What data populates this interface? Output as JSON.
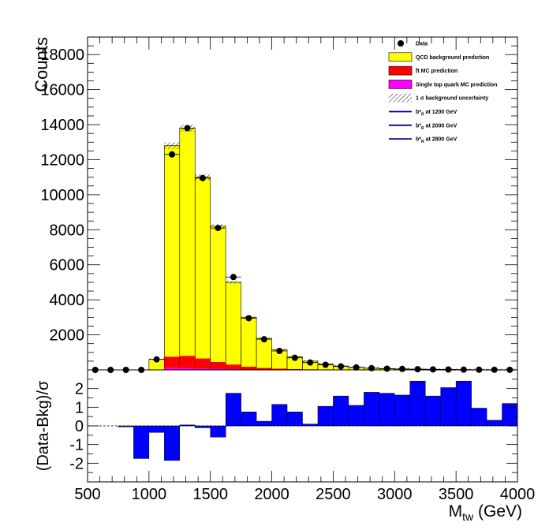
{
  "chart_data": [
    {
      "type": "bar",
      "panel": "main",
      "ylabel": "Counts",
      "xlim": [
        500,
        4000
      ],
      "ylim": [
        0,
        19000
      ],
      "y_ticks": [
        2000,
        4000,
        6000,
        8000,
        10000,
        12000,
        14000,
        16000,
        18000
      ],
      "bin_width": 125,
      "bin_low_edges": [
        500,
        625,
        750,
        875,
        1000,
        1125,
        1250,
        1375,
        1500,
        1625,
        1750,
        1875,
        2000,
        2125,
        2250,
        2375,
        2500,
        2625,
        2750,
        2875,
        3000,
        3125,
        3250,
        3375,
        3500,
        3625,
        3750,
        3875
      ],
      "series": [
        {
          "name": "QCD background prediction",
          "stack": "total",
          "color": "#ffff00",
          "values": [
            0,
            0,
            0,
            0,
            600,
            12800,
            13800,
            11000,
            8200,
            5000,
            3000,
            1800,
            1150,
            750,
            500,
            330,
            220,
            150,
            100,
            70,
            50,
            35,
            25,
            18,
            12,
            8,
            6,
            4
          ]
        },
        {
          "name": "t̄t MC prediction",
          "stack": "component",
          "color": "#ff0000",
          "values": [
            0,
            0,
            0,
            0,
            0,
            750,
            800,
            650,
            450,
            300,
            180,
            110,
            70,
            45,
            30,
            20,
            15,
            10,
            7,
            5,
            4,
            3,
            2,
            2,
            1,
            1,
            1,
            0
          ]
        },
        {
          "name": "Single top quark MC prediction",
          "stack": "component",
          "color": "#ff00ff",
          "values": [
            0,
            0,
            0,
            0,
            0,
            120,
            110,
            80,
            60,
            40,
            25,
            15,
            10,
            6,
            4,
            3,
            2,
            1,
            1,
            1,
            0,
            0,
            0,
            0,
            0,
            0,
            0,
            0
          ]
        },
        {
          "name": "Data",
          "marker": "circle",
          "color": "#000000",
          "values": [
            0,
            0,
            0,
            0,
            600,
            12300,
            13800,
            10950,
            8100,
            5300,
            2950,
            1750,
            1080,
            690,
            420,
            290,
            200,
            140,
            100,
            70,
            55,
            40,
            30,
            22,
            15,
            10,
            8,
            5
          ]
        }
      ],
      "legend": [
        {
          "label": "Data",
          "symbol": "marker"
        },
        {
          "label": "QCD background prediction",
          "symbol": "box",
          "color": "#ffff00"
        },
        {
          "label": "t̄t MC prediction",
          "symbol": "box",
          "color": "#ff0000"
        },
        {
          "label": "Single top quark MC prediction",
          "symbol": "box",
          "color": "#ff00ff"
        },
        {
          "label": "1 σ background uncertainty",
          "symbol": "hatch"
        },
        {
          "label": "b*R at 1200 GeV",
          "symbol": "line",
          "color": "#0000aa",
          "base": "b*",
          "sub": "R",
          "rest": " at 1200 GeV"
        },
        {
          "label": "b*R at 2000 GeV",
          "symbol": "line",
          "color": "#000099",
          "base": "b*",
          "sub": "R",
          "rest": " at 2000 GeV"
        },
        {
          "label": "b*R at 2800 GeV",
          "symbol": "line",
          "color": "#000088",
          "base": "b*",
          "sub": "R",
          "rest": " at 2800 GeV"
        }
      ],
      "legend_position": "top-right"
    },
    {
      "type": "bar",
      "panel": "ratio",
      "xlabel": "M_tw (GeV)",
      "xlabel_base": "M",
      "xlabel_sub": "tw",
      "xlabel_rest": " (GeV)",
      "ylabel": "(Data-Bkg)/σ",
      "xlim": [
        500,
        4000
      ],
      "ylim": [
        -3,
        3
      ],
      "y_ticks": [
        -2,
        -1,
        0,
        1,
        2
      ],
      "x_ticks": [
        500,
        1000,
        1500,
        2000,
        2500,
        3000,
        3500,
        4000
      ],
      "bar_color": "#0000ff",
      "x": [
        750,
        875,
        1000,
        1125,
        1250,
        1375,
        1500,
        1625,
        1750,
        1875,
        2000,
        2125,
        2250,
        2375,
        2500,
        2625,
        2750,
        2875,
        3000,
        3125,
        3250,
        3375,
        3500,
        3625,
        3750,
        3875
      ],
      "values": [
        -0.05,
        -1.75,
        -0.35,
        -1.85,
        0.05,
        -0.1,
        -0.6,
        1.75,
        0.75,
        0.25,
        1.15,
        0.75,
        0.1,
        1.05,
        1.6,
        1.1,
        1.8,
        1.75,
        1.65,
        2.4,
        1.6,
        2.05,
        2.4,
        0.95,
        0.3,
        1.2
      ]
    }
  ]
}
